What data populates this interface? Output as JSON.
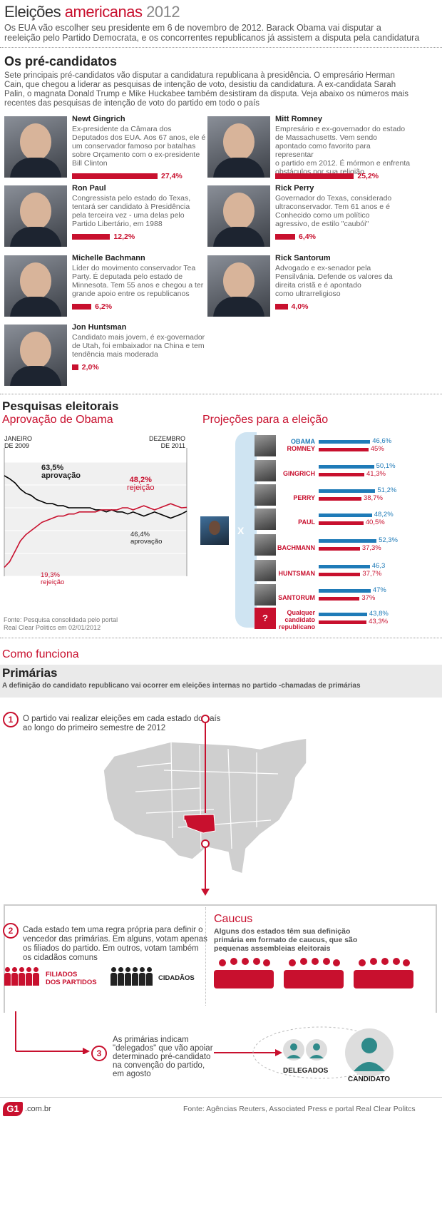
{
  "header": {
    "title_part1": "Eleições ",
    "title_part2": "americanas",
    "title_part3": " 2012",
    "intro_line1": "Os EUA vão escolher seu presidente em 6  de novembro de 2012. Barack Obama vai disputar a",
    "intro_line2": "reeleição pelo Partido Democrata, e os concorrentes republicanos já assistem a disputa pela candidatura"
  },
  "precandidatos": {
    "title": "Os pré-candidatos",
    "text": [
      "Sete principais pré-candidatos vão disputar a candidatura republicana à presidência. O empresário Herman",
      "Cain, que chegou a liderar as pesquisas de intenção de voto, desistiu da candidatura. A ex-candidata Sarah",
      "Palin, o magnata Donald Trump e Mike Huckabee também desistiram da disputa. Veja abaixo os números mais",
      "recentes das pesquisas de intenção de voto do partido em todo o país"
    ],
    "candidates": [
      {
        "name": "Newt Gingrich",
        "desc": [
          "Ex-presidente da Câmara dos",
          "Deputados dos EUA. Aos 67 anos, ele é",
          "um conservador famoso por batalhas",
          "sobre Orçamento com o ex-presidente",
          "Bill Clinton"
        ],
        "value": 27.4,
        "label": "27,4%"
      },
      {
        "name": "Mitt Romney",
        "desc": [
          "Empresário e ex-governador do estado",
          "de Massachusetts. Vem sendo",
          "apontado como favorito para representar",
          "o partido em 2012. É mórmon e enfrenta",
          "obstáculos por sua religião"
        ],
        "value": 25.2,
        "label": "25,2%"
      },
      {
        "name": "Ron Paul",
        "desc": [
          "Congressista pelo estado do Texas,",
          "tentará ser candidato à Presidência",
          "pela terceira vez - uma delas pelo",
          "Partido Libertário, em 1988"
        ],
        "value": 12.2,
        "label": "12,2%"
      },
      {
        "name": "Rick Perry",
        "desc": [
          "Governador do Texas, considerado",
          "ultraconservador. Tem 61 anos e é",
          "Conhecido como um político",
          "agressivo, de estilo \"caubói\""
        ],
        "value": 6.4,
        "label": "6,4%"
      },
      {
        "name": "Michelle Bachmann",
        "desc": [
          "Líder do movimento conservador Tea",
          "Party. É deputada pelo estado de",
          "Minnesota. Tem 55 anos e chegou a ter",
          "grande apoio entre os republicanos"
        ],
        "value": 6.2,
        "label": "6,2%"
      },
      {
        "name": "Rick Santorum",
        "desc": [
          "Advogado e ex-senador pela",
          "Pensilvânia. Defende os valores da",
          "direita cristã e é apontado",
          "como ultrarreligioso"
        ],
        "value": 4.0,
        "label": "4,0%"
      },
      {
        "name": "Jon Huntsman",
        "desc": [
          "Candidato mais jovem, é ex-governador",
          "de Utah, foi embaixador na China e tem",
          "tendência mais moderada"
        ],
        "value": 2.0,
        "label": "2,0%"
      }
    ]
  },
  "pesquisas": {
    "title": "Pesquisas eleitorais",
    "approval_title": "Aprovação de Obama",
    "projections_title": "Projeções para a eleição",
    "start_label": [
      "JANEIRO",
      "DE 2009"
    ],
    "end_label": [
      "DEZEMBRO",
      "DE 2011"
    ],
    "annot_approval_start": [
      "63,5%",
      "aprovação"
    ],
    "annot_reject_end": [
      "48,2%",
      "rejeição"
    ],
    "annot_approval_end": [
      "46,4%",
      "aprovação"
    ],
    "annot_reject_start": [
      "19,3%",
      "rejeição"
    ],
    "source": [
      "Fonte: Pesquisa consolidada pelo portal",
      "Real Clear Politics em 02/01/2012"
    ],
    "obama_x": "X"
  },
  "chart_data": [
    {
      "type": "line",
      "title": "Aprovação de Obama",
      "x_range": [
        "2009-01",
        "2011-12"
      ],
      "series": [
        {
          "name": "aprovação",
          "color": "#000000",
          "values": [
            63.5,
            62,
            60,
            57,
            55,
            54,
            52,
            51,
            50,
            50,
            49,
            49,
            48,
            48,
            48,
            48,
            48,
            47,
            47,
            46,
            47,
            46,
            46,
            45,
            46,
            45,
            44,
            45,
            46,
            45,
            44,
            43,
            44,
            45,
            46.4
          ]
        },
        {
          "name": "rejeição",
          "color": "#c8102e",
          "values": [
            19.3,
            22,
            27,
            32,
            35,
            37,
            39,
            41,
            42,
            43,
            44,
            44,
            45,
            45,
            46,
            46,
            46,
            46,
            47,
            47,
            47,
            47,
            48,
            48,
            47,
            48,
            49,
            48,
            47,
            48,
            49,
            50,
            49,
            48,
            48.2
          ]
        }
      ]
    },
    {
      "type": "bar",
      "title": "Projeções para a eleição",
      "series": [
        {
          "name": "Obama",
          "color": "#1f7bb8",
          "values": [
            46.6,
            50.1,
            51.2,
            48.2,
            52.3,
            46.3,
            47,
            43.8
          ],
          "labels": [
            "46,6%",
            "50,1%",
            "51,2%",
            "48,2%",
            "52,3%",
            "46,3",
            "47%",
            "43,8%"
          ]
        },
        {
          "name": "Republicano",
          "color": "#c8102e",
          "values": [
            45,
            41.3,
            38.7,
            40.5,
            37.3,
            37.7,
            37,
            43.3
          ],
          "labels": [
            "45%",
            "41,3%",
            "38,7%",
            "40,5%",
            "37,3%",
            "37,7%",
            "37%",
            "43,3%"
          ]
        }
      ],
      "categories": [
        "ROMNEY",
        "GINGRICH",
        "PERRY",
        "PAUL",
        "BACHMANN",
        "HUNTSMAN",
        "SANTORUM",
        "Qualquer candidato republicano"
      ],
      "obama_label": "OBAMA"
    }
  ],
  "como_funciona": {
    "title": "Como funciona",
    "primarias_title": "Primárias",
    "primarias_sub": "A definição do candidato republicano vai ocorrer em eleições internas no partido -chamadas de primárias",
    "step1_num": "1",
    "step1_text": [
      "O partido vai realizar eleições em cada estado do país",
      "ao longo do primeiro semestre de 2012"
    ],
    "step2_num": "2",
    "step2_text": [
      "Cada estado tem uma regra própria para definir o",
      "vencedor das primárias. Em alguns, votam apenas",
      "os filiados do partido. Em outros, votam também",
      "os cidadãos comuns"
    ],
    "filiados_label": [
      "FILIADOS",
      "DOS PARTIDOS"
    ],
    "cidadaos_label": "CIDADÃOS",
    "caucus_title": "Caucus",
    "caucus_text": [
      "Alguns dos estados têm sua definição",
      "primária em formato de caucus, que são",
      "pequenas assembleias eleitorais"
    ],
    "step3_num": "3",
    "step3_text": [
      "As primárias indicam",
      "\"delegados\" que vão apoiar",
      "determinado pré-candidato",
      "na convenção do partido,",
      "em agosto"
    ],
    "delegados_label": "DELEGADOS",
    "candidato_label": "CANDIDATO"
  },
  "footer": {
    "logo_text": "G1",
    "domain": ".com.br",
    "source": "Fonte: Agências Reuters, Associated Press e portal Real Clear Politcs"
  }
}
